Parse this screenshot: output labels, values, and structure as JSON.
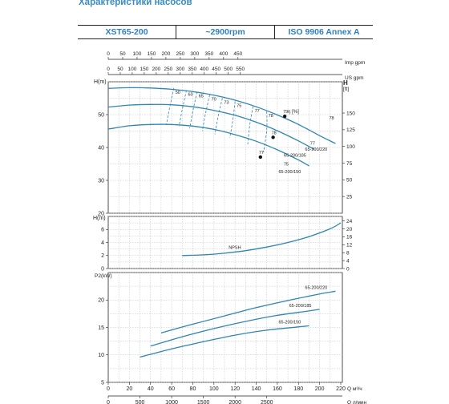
{
  "page": {
    "title": "Характеристики насосов"
  },
  "header": {
    "model": "XST65-200",
    "speed": "~2900rpm",
    "standard": "ISO 9906   Annex A"
  },
  "colors": {
    "curve": "#2f86b3",
    "grid": "#b9bfc6",
    "frame": "#222222",
    "title": "#3a8dc5"
  },
  "chart_data": [
    {
      "type": "line",
      "name": "head",
      "ylabel": "H(m)",
      "ylabel_right": "H [ft]",
      "ylim": [
        20,
        60
      ],
      "yticks": [
        20,
        30,
        40,
        50
      ],
      "yticks_right": [
        25,
        50,
        75,
        100,
        125,
        150
      ],
      "ylim_right": [
        0,
        196.85
      ],
      "top_axes": [
        {
          "label": "Imp gpm",
          "ticks": [
            0,
            50,
            100,
            150,
            200,
            250,
            300,
            350,
            400,
            450
          ],
          "factor_q": 4.403
        },
        {
          "label": "US gpm",
          "ticks": [
            0,
            50,
            100,
            150,
            200,
            250,
            300,
            350,
            400,
            450,
            500,
            550
          ],
          "factor_q": 4.4029
        }
      ],
      "series": [
        {
          "name": "65-200/220",
          "x": [
            0,
            20,
            40,
            60,
            80,
            100,
            120,
            140,
            160,
            180,
            200,
            215
          ],
          "y": [
            58,
            58.2,
            58.1,
            57.7,
            57,
            55.9,
            54.4,
            52.4,
            49.9,
            47,
            43.6,
            41.2
          ]
        },
        {
          "name": "65-200/185",
          "x": [
            0,
            20,
            40,
            60,
            80,
            100,
            120,
            140,
            160,
            180,
            195
          ],
          "y": [
            52.3,
            52.9,
            53.1,
            53,
            52.4,
            51.3,
            49.8,
            47.7,
            45.1,
            42,
            39.4
          ]
        },
        {
          "name": "65-200/150",
          "x": [
            0,
            20,
            40,
            60,
            80,
            100,
            120,
            140,
            160,
            180,
            190
          ],
          "y": [
            45.6,
            46.6,
            47,
            47,
            46.5,
            45.5,
            43.9,
            41.9,
            39.3,
            36.2,
            34.4
          ]
        }
      ],
      "efficiency_label": "η [%]",
      "efficiency_lines": [
        {
          "label": "50",
          "points": [
            [
              62,
              58.1
            ],
            [
              58,
              52
            ],
            [
              55,
              47
            ]
          ]
        },
        {
          "label": "60",
          "points": [
            [
              74,
              57.4
            ],
            [
              70,
              51.5
            ],
            [
              67,
              46.5
            ]
          ]
        },
        {
          "label": "65",
          "points": [
            [
              84,
              56.9
            ],
            [
              80,
              51
            ],
            [
              77,
              45.8
            ]
          ]
        },
        {
          "label": "70",
          "points": [
            [
              96,
              56
            ],
            [
              92,
              50.3
            ],
            [
              89,
              45
            ]
          ]
        },
        {
          "label": "73",
          "points": [
            [
              108,
              55
            ],
            [
              104,
              49.5
            ],
            [
              101,
              44
            ]
          ]
        },
        {
          "label": "75",
          "points": [
            [
              120,
              54
            ],
            [
              118,
              48.5
            ],
            [
              115,
              43
            ]
          ]
        },
        {
          "label": "77",
          "points": [
            [
              137,
              52.5
            ],
            [
              134,
              47
            ],
            [
              132,
              41
            ]
          ]
        },
        {
          "label": "78",
          "points": [
            [
              150,
              51
            ],
            [
              150,
              45.5
            ],
            [
              147,
              38.5
            ]
          ]
        }
      ],
      "bep_points": [
        {
          "x": 167,
          "y": 49.5,
          "label": "79"
        },
        {
          "x": 156,
          "y": 43.1,
          "label": "78"
        },
        {
          "x": 144,
          "y": 37.1,
          "label": "77"
        }
      ],
      "curve_end_labels": [
        {
          "x": 209,
          "y": 48.5,
          "label": "78"
        },
        {
          "x": 191,
          "y": 40.8,
          "label": "77"
        },
        {
          "x": 166,
          "y": 34.5,
          "label": "75"
        }
      ]
    },
    {
      "type": "line",
      "name": "npsh",
      "ylabel": "H(m)",
      "ylim": [
        0,
        8
      ],
      "yticks": [
        0,
        2,
        4,
        6
      ],
      "yticks_right": [
        0,
        4,
        8,
        12,
        16,
        20,
        24
      ],
      "ylim_right": [
        0,
        26.25
      ],
      "series": [
        {
          "name": "NPSH",
          "x": [
            70,
            90,
            110,
            130,
            150,
            170,
            190,
            210,
            220
          ],
          "y": [
            2.0,
            2.1,
            2.35,
            2.75,
            3.3,
            4.0,
            4.9,
            6.1,
            7.0
          ]
        }
      ],
      "labels": [
        "NPSH"
      ]
    },
    {
      "type": "line",
      "name": "power",
      "ylabel": "P2(kW)",
      "ylim": [
        5,
        25
      ],
      "yticks": [
        5,
        10,
        15,
        20
      ],
      "series": [
        {
          "name": "65-200/220",
          "x": [
            50,
            80,
            110,
            140,
            170,
            200,
            215
          ],
          "y": [
            14.0,
            15.6,
            17.1,
            18.6,
            19.9,
            21.1,
            21.6
          ]
        },
        {
          "name": "65-200/185",
          "x": [
            40,
            70,
            100,
            130,
            160,
            190,
            200
          ],
          "y": [
            11.6,
            13.3,
            14.8,
            16.1,
            17.2,
            18.0,
            18.3
          ]
        },
        {
          "name": "65-200/150",
          "x": [
            30,
            60,
            90,
            120,
            150,
            180,
            190
          ],
          "y": [
            9.6,
            11.1,
            12.4,
            13.6,
            14.5,
            15.1,
            15.3
          ]
        }
      ],
      "bottom_axes": [
        {
          "label": "Q  м³/ч",
          "ticks": [
            0,
            20,
            40,
            60,
            80,
            100,
            120,
            140,
            160,
            180,
            200,
            220
          ]
        },
        {
          "label": "Q  л/мин",
          "ticks": [
            0,
            500,
            1000,
            1500,
            2000,
            2500
          ],
          "factor_q": 16.6667
        }
      ]
    }
  ]
}
